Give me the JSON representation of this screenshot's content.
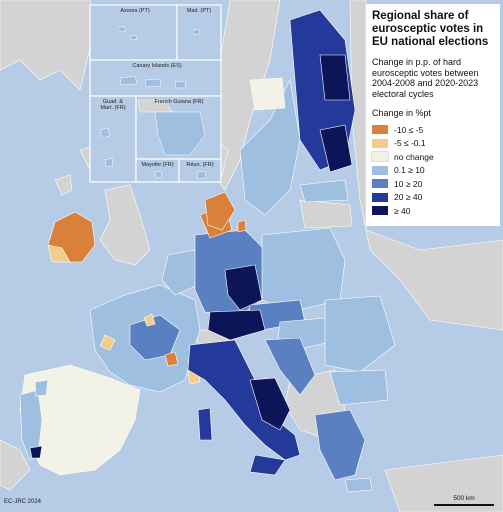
{
  "title": "Regional share of eurosceptic votes in EU national elections",
  "subtitle": "Change in p.p. of hard eurosceptic votes between 2004-2008 and 2020-2023 electoral cycles",
  "legend": {
    "heading": "Change in %pt",
    "items": [
      {
        "label": "-10 ≤ -5",
        "color": "#d9813b"
      },
      {
        "label": "-5 ≤ -0.1",
        "color": "#f2cc8c"
      },
      {
        "label": "no change",
        "color": "#f3f2e6"
      },
      {
        "label": "0.1 ≥ 10",
        "color": "#9ebfdf"
      },
      {
        "label": "10 ≥ 20",
        "color": "#5b80c2"
      },
      {
        "label": "20 ≥ 40",
        "color": "#233a9a"
      },
      {
        "label": "≥ 40",
        "color": "#0c1557"
      }
    ]
  },
  "insets": {
    "azores": "Azores (PT)",
    "madeira": "Mad. (PT)",
    "canary": "Canary Islands (ES)",
    "guadeloupe": "Guad. &",
    "martinique": "Mart. (FR)",
    "guiana": "French Guiana (FR)",
    "mayotte": "Mayotte (FR)",
    "reunion": "Réun. (FR)"
  },
  "credit": "EC-JRC 2024",
  "scale_label": "500 km",
  "colors": {
    "sea": "#b6cbe6",
    "non_eu_land": "#d3d3d3",
    "border": "#ffffff"
  }
}
